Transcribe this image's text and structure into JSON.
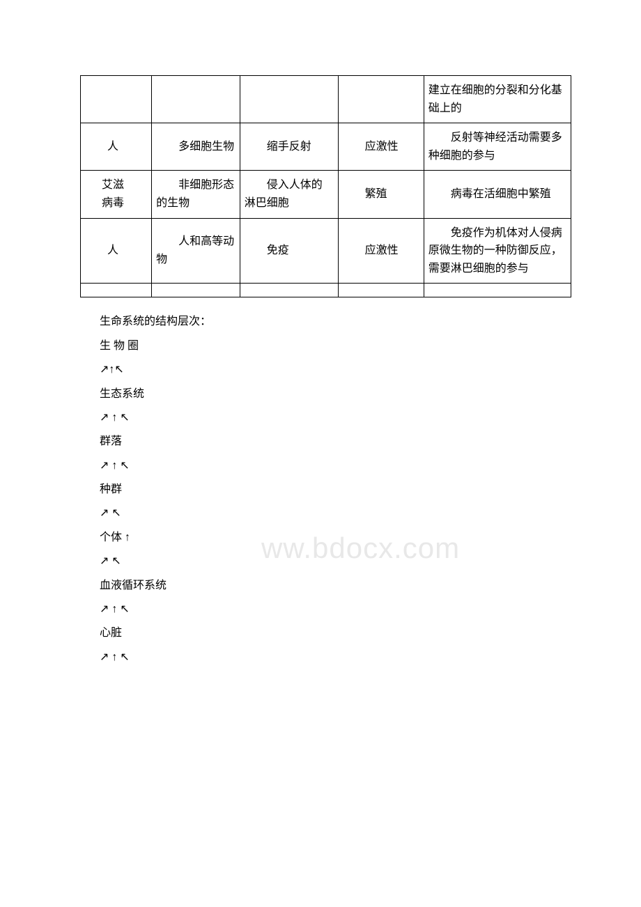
{
  "table": {
    "columns": [
      {
        "width": "14.5%"
      },
      {
        "width": "18%"
      },
      {
        "width": "20%"
      },
      {
        "width": "17.5%"
      },
      {
        "width": "30%"
      }
    ],
    "rows": [
      {
        "cells": [
          {
            "text": "",
            "indent": false
          },
          {
            "text": "",
            "indent": false
          },
          {
            "text": "",
            "indent": false
          },
          {
            "text": "",
            "indent": false
          },
          {
            "text": "建立在细胞的分裂和分化基础上的",
            "indent": false
          }
        ]
      },
      {
        "cells": [
          {
            "text": "人",
            "indent": true,
            "center": true
          },
          {
            "text": "多细胞生物",
            "indent": true
          },
          {
            "text": "缩手反射",
            "indent": true
          },
          {
            "text": "应激性",
            "indent": true,
            "center": true
          },
          {
            "text": "反射等神经活动需要多种细胞的参与",
            "indent": true
          }
        ]
      },
      {
        "cells": [
          {
            "text_lines": [
              "艾滋",
              "病毒"
            ],
            "indent": true
          },
          {
            "text": "非细胞形态的生物",
            "indent": true
          },
          {
            "text": "侵入人体的淋巴细胞",
            "indent": true
          },
          {
            "text": "繁殖",
            "indent": true,
            "center": true
          },
          {
            "text": "病毒在活细胞中繁殖",
            "indent": true
          }
        ]
      },
      {
        "cells": [
          {
            "text": "人",
            "indent": true,
            "center": true
          },
          {
            "text": "人和高等动物",
            "indent": true
          },
          {
            "text": "免疫",
            "indent": true,
            "center": true
          },
          {
            "text": "应激性",
            "indent": true,
            "center": true
          },
          {
            "text": "免疫作为机体对人侵病原微生物的一种防御反应，需要淋巴细胞的参与",
            "indent": true
          }
        ]
      },
      {
        "cells": [
          {
            "text": ""
          },
          {
            "text": ""
          },
          {
            "text": ""
          },
          {
            "text": ""
          },
          {
            "text": ""
          }
        ],
        "empty": true
      }
    ]
  },
  "watermark": "ww.bdocx.com",
  "hierarchy": {
    "title": "生命系统的结构层次：",
    "lines": [
      {
        "text": "生 物 圈",
        "spaced": false
      },
      {
        "text": "↗↑↖",
        "spaced": false
      },
      {
        "text": "生态系统",
        "spaced": false
      },
      {
        "text": "↗ ↑ ↖",
        "spaced": false
      },
      {
        "text": "群落",
        "spaced": false
      },
      {
        "text": "↗ ↑  ↖",
        "spaced": false
      },
      {
        "text": "种群",
        "spaced": false
      },
      {
        "text": "↗  ↖",
        "spaced": false
      },
      {
        "text": "个体  ↑",
        "spaced": false
      },
      {
        "text": "↗   ↖",
        "spaced": false
      },
      {
        "text": "血液循环系统",
        "spaced": false
      },
      {
        "text": "↗ ↑   ↖",
        "spaced": false
      },
      {
        "text": "心脏",
        "spaced": false
      },
      {
        "text": "↗ ↑ ↖",
        "spaced": false
      }
    ]
  }
}
